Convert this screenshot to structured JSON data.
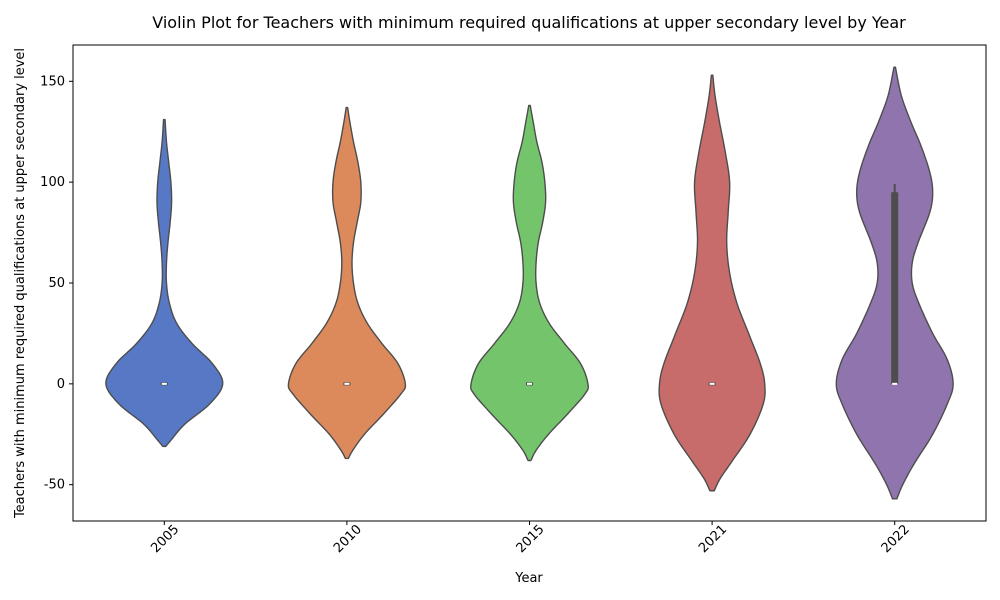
{
  "chart_data": {
    "type": "violin",
    "title": "Violin Plot for Teachers with minimum required qualifications at upper secondary level by Year",
    "xlabel": "Year",
    "ylabel": "Teachers with minimum required qualifications at upper secondary level",
    "categories": [
      "2005",
      "2010",
      "2015",
      "2021",
      "2022"
    ],
    "colors": [
      "#5778c4",
      "#dc8a5b",
      "#74c46c",
      "#c86b6b",
      "#9074ad"
    ],
    "ylim": [
      -68,
      168
    ],
    "yticks": [
      -50,
      0,
      50,
      100,
      150
    ],
    "grid": false,
    "violins": [
      {
        "category": "2005",
        "min": -31,
        "max": 131,
        "median": 0,
        "q1": 0,
        "q3": 0,
        "density": [
          [
            -31,
            0.02
          ],
          [
            -28,
            0.09
          ],
          [
            -20,
            0.28
          ],
          [
            -10,
            0.62
          ],
          [
            0,
            0.8
          ],
          [
            10,
            0.66
          ],
          [
            20,
            0.38
          ],
          [
            30,
            0.17
          ],
          [
            40,
            0.07
          ],
          [
            50,
            0.03
          ],
          [
            60,
            0.03
          ],
          [
            70,
            0.05
          ],
          [
            80,
            0.08
          ],
          [
            90,
            0.1
          ],
          [
            100,
            0.09
          ],
          [
            110,
            0.06
          ],
          [
            120,
            0.03
          ],
          [
            131,
            0.01
          ]
        ]
      },
      {
        "category": "2010",
        "min": -37,
        "max": 137,
        "median": 0,
        "q1": 0,
        "q3": 0,
        "density": [
          [
            -37,
            0.02
          ],
          [
            -33,
            0.08
          ],
          [
            -25,
            0.24
          ],
          [
            -15,
            0.5
          ],
          [
            -5,
            0.74
          ],
          [
            0,
            0.8
          ],
          [
            10,
            0.7
          ],
          [
            20,
            0.48
          ],
          [
            30,
            0.28
          ],
          [
            40,
            0.15
          ],
          [
            50,
            0.09
          ],
          [
            60,
            0.07
          ],
          [
            70,
            0.09
          ],
          [
            80,
            0.14
          ],
          [
            90,
            0.19
          ],
          [
            100,
            0.19
          ],
          [
            110,
            0.15
          ],
          [
            120,
            0.09
          ],
          [
            130,
            0.04
          ],
          [
            137,
            0.01
          ]
        ]
      },
      {
        "category": "2015",
        "min": -38,
        "max": 138,
        "median": 0,
        "q1": 0,
        "q3": 0,
        "density": [
          [
            -38,
            0.02
          ],
          [
            -33,
            0.09
          ],
          [
            -25,
            0.26
          ],
          [
            -15,
            0.52
          ],
          [
            -5,
            0.76
          ],
          [
            0,
            0.8
          ],
          [
            10,
            0.7
          ],
          [
            20,
            0.48
          ],
          [
            30,
            0.27
          ],
          [
            40,
            0.14
          ],
          [
            50,
            0.09
          ],
          [
            60,
            0.09
          ],
          [
            70,
            0.12
          ],
          [
            80,
            0.18
          ],
          [
            90,
            0.22
          ],
          [
            100,
            0.21
          ],
          [
            110,
            0.17
          ],
          [
            120,
            0.1
          ],
          [
            130,
            0.05
          ],
          [
            138,
            0.01
          ]
        ]
      },
      {
        "category": "2021",
        "min": -53,
        "max": 153,
        "median": 0,
        "q1": 0,
        "q3": 0,
        "density": [
          [
            -53,
            0.03
          ],
          [
            -47,
            0.11
          ],
          [
            -38,
            0.28
          ],
          [
            -25,
            0.52
          ],
          [
            -10,
            0.7
          ],
          [
            0,
            0.72
          ],
          [
            10,
            0.66
          ],
          [
            25,
            0.5
          ],
          [
            40,
            0.34
          ],
          [
            55,
            0.24
          ],
          [
            70,
            0.2
          ],
          [
            85,
            0.22
          ],
          [
            100,
            0.24
          ],
          [
            115,
            0.18
          ],
          [
            130,
            0.1
          ],
          [
            143,
            0.04
          ],
          [
            153,
            0.01
          ]
        ]
      },
      {
        "category": "2022",
        "min": -57,
        "max": 157,
        "median": 0,
        "q1": 0,
        "q3": 95,
        "whisker_high": 99,
        "density": [
          [
            -57,
            0.03
          ],
          [
            -50,
            0.11
          ],
          [
            -40,
            0.26
          ],
          [
            -25,
            0.52
          ],
          [
            -10,
            0.72
          ],
          [
            0,
            0.8
          ],
          [
            12,
            0.72
          ],
          [
            25,
            0.52
          ],
          [
            40,
            0.33
          ],
          [
            50,
            0.24
          ],
          [
            60,
            0.24
          ],
          [
            70,
            0.32
          ],
          [
            85,
            0.48
          ],
          [
            95,
            0.52
          ],
          [
            105,
            0.48
          ],
          [
            118,
            0.36
          ],
          [
            130,
            0.22
          ],
          [
            143,
            0.09
          ],
          [
            157,
            0.01
          ]
        ]
      }
    ]
  }
}
